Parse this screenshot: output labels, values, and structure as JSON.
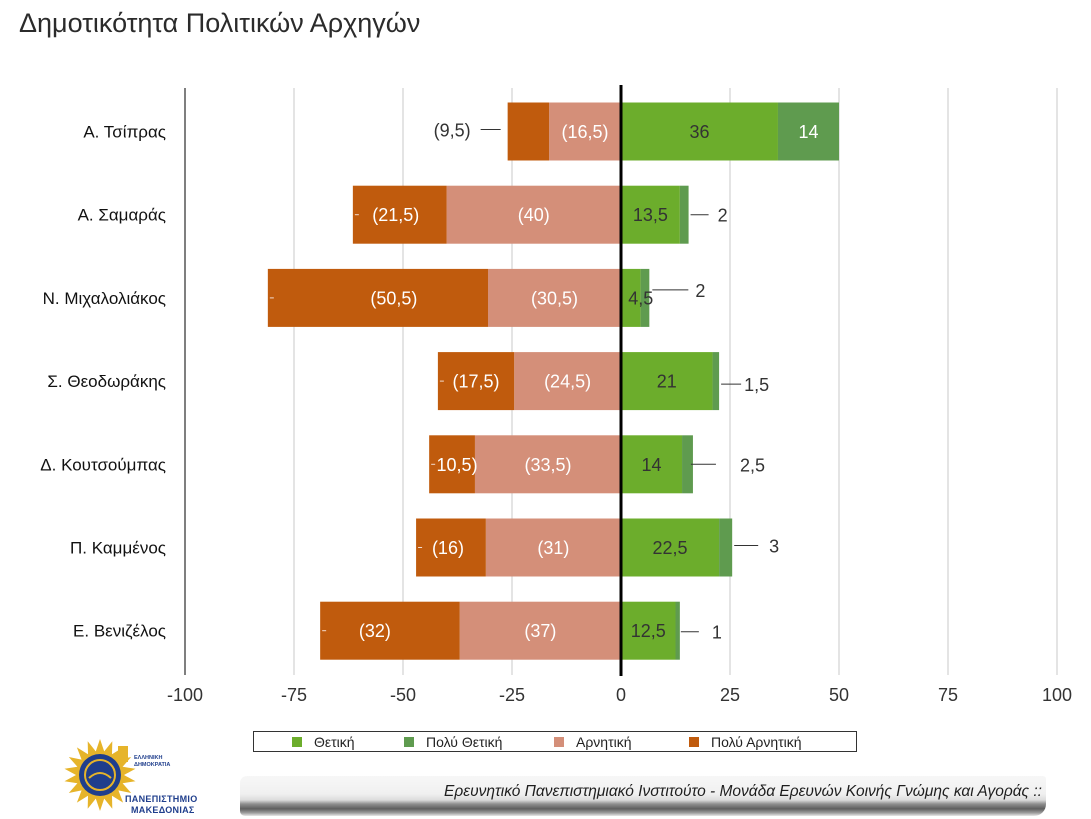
{
  "chart_data": {
    "type": "bar",
    "orientation": "horizontal",
    "stacked": true,
    "title": "Δημοτικότητα Πολιτικών Αρχηγών",
    "xlabel": "",
    "ylabel": "",
    "categories": [
      "Α. Τσίπρας",
      "Α. Σαμαράς",
      "Ν. Μιχαλολιάκος",
      "Σ. Θεοδωράκης",
      "Δ. Κουτσούμπας",
      "Π. Καμμένος",
      "Ε. Βενιζέλος"
    ],
    "series": [
      {
        "name": "Θετική",
        "color": "#6cad2c",
        "label_color": "#333333",
        "values": [
          36,
          13.5,
          4.5,
          21,
          14,
          22.5,
          12.5
        ],
        "labels": [
          "36",
          "13,5",
          "4,5",
          "21",
          "14",
          "22,5",
          "12,5"
        ]
      },
      {
        "name": "Πολύ Θετική",
        "color": "#5f9b4f",
        "label_color": "#ffffff",
        "values": [
          14,
          2,
          2,
          1.5,
          2.5,
          3,
          1
        ],
        "labels": [
          "14",
          "2",
          "2",
          "1,5",
          "2,5",
          "3",
          "1"
        ]
      },
      {
        "name": "Αρνητική",
        "color": "#d48f79",
        "label_color": "#ffffff",
        "values": [
          -16.5,
          -40,
          -30.5,
          -24.5,
          -33.5,
          -31,
          -37
        ],
        "labels": [
          "(16,5)",
          "(40)",
          "(30,5)",
          "(24,5)",
          "(33,5)",
          "(31)",
          "(37)"
        ]
      },
      {
        "name": "Πολύ Αρνητική",
        "color": "#c05b0d",
        "label_color": "#ffffff",
        "values": [
          -9.5,
          -21.5,
          -50.5,
          -17.5,
          -10.5,
          -16,
          -32
        ],
        "labels": [
          "(9,5)",
          "(21,5)",
          "(50,5)",
          "(17,5)",
          "10,5)",
          "(16)",
          "(32)"
        ]
      }
    ],
    "xlim": [
      -100,
      100
    ],
    "xticks": [
      -100,
      -75,
      -50,
      -25,
      0,
      25,
      50,
      75,
      100
    ],
    "xtick_labels": [
      "-100",
      "-75",
      "-50",
      "-25",
      "0",
      "25",
      "50",
      "75",
      "100"
    ],
    "grid": true,
    "legend": "bottom"
  },
  "footer": {
    "institute": "Ερευνητικό Πανεπιστημιακό Ινστιτούτο - Μονάδα Ερευνών Κοινής Γνώμης και Αγοράς ::",
    "logo": {
      "small_line1": "ΕΛΛΗΝΙΚΗ",
      "small_line2": "ΔΗΜΟΚΡΑΤΙΑ",
      "name_line1": "ΠΑΝΕΠΙΣΤΗΜΙΟ",
      "name_line2": "ΜΑΚΕΔΟΝΙΑΣ"
    },
    "logo_colors": {
      "blue": "#1f3e8c",
      "gold": "#e6b42a"
    }
  }
}
